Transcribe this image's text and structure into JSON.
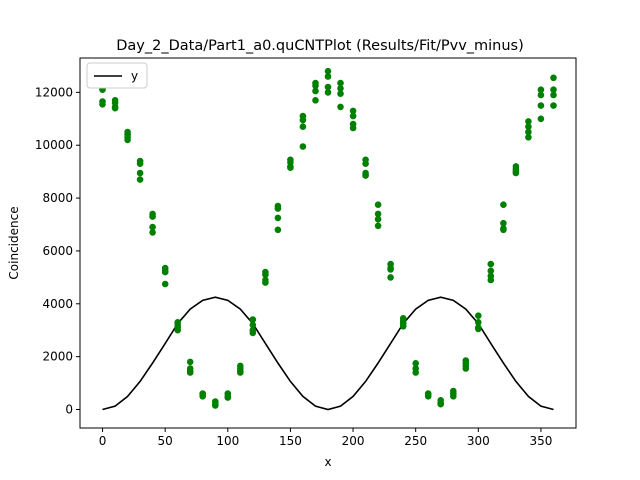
{
  "chart_data": {
    "type": "scatter",
    "title": "Day_2_Data/Part1_a0.quCNTPlot (Results/Fit/Pvv_minus)",
    "xlabel": "x",
    "ylabel": "Coincidence",
    "xlim": [
      -18,
      378
    ],
    "ylim": [
      -700,
      13300
    ],
    "xticks": [
      0,
      50,
      100,
      150,
      200,
      250,
      300,
      350
    ],
    "yticks": [
      0,
      2000,
      4000,
      6000,
      8000,
      10000,
      12000
    ],
    "grid": false,
    "legend": {
      "placement": "top-left",
      "entries": [
        {
          "label": "y",
          "color": "#000000"
        }
      ]
    },
    "series": [
      {
        "name": "y",
        "kind": "line",
        "color": "#000000",
        "x": [
          0,
          10,
          20,
          30,
          40,
          50,
          60,
          70,
          80,
          90,
          100,
          110,
          120,
          130,
          140,
          150,
          160,
          170,
          180,
          190,
          200,
          210,
          220,
          230,
          240,
          250,
          260,
          270,
          280,
          290,
          300,
          310,
          320,
          330,
          340,
          350,
          360
        ],
        "y": [
          0,
          128,
          497,
          1065,
          1760,
          2500,
          3250,
          3800,
          4130,
          4250,
          4130,
          3800,
          3250,
          2500,
          1760,
          1065,
          497,
          128,
          0,
          128,
          497,
          1065,
          1760,
          2500,
          3250,
          3800,
          4130,
          4250,
          4130,
          3800,
          3250,
          2500,
          1760,
          1065,
          497,
          128,
          0
        ]
      },
      {
        "kind": "scatter",
        "color": "#008000",
        "points": [
          [
            0,
            12150
          ],
          [
            0,
            12100
          ],
          [
            0,
            11650
          ],
          [
            0,
            11550
          ],
          [
            10,
            11700
          ],
          [
            10,
            11600
          ],
          [
            10,
            11450
          ],
          [
            10,
            11400
          ],
          [
            20,
            10500
          ],
          [
            20,
            10400
          ],
          [
            20,
            10300
          ],
          [
            20,
            10200
          ],
          [
            30,
            9400
          ],
          [
            30,
            9300
          ],
          [
            30,
            8950
          ],
          [
            30,
            8700
          ],
          [
            40,
            7400
          ],
          [
            40,
            7300
          ],
          [
            40,
            6900
          ],
          [
            40,
            6700
          ],
          [
            50,
            5350
          ],
          [
            50,
            5250
          ],
          [
            50,
            5200
          ],
          [
            50,
            4750
          ],
          [
            60,
            3300
          ],
          [
            60,
            3200
          ],
          [
            60,
            3100
          ],
          [
            60,
            3000
          ],
          [
            70,
            1800
          ],
          [
            70,
            1550
          ],
          [
            70,
            1450
          ],
          [
            70,
            1400
          ],
          [
            80,
            600
          ],
          [
            80,
            550
          ],
          [
            80,
            500
          ],
          [
            90,
            300
          ],
          [
            90,
            200
          ],
          [
            90,
            150
          ],
          [
            100,
            600
          ],
          [
            100,
            500
          ],
          [
            100,
            450
          ],
          [
            110,
            1650
          ],
          [
            110,
            1550
          ],
          [
            110,
            1450
          ],
          [
            110,
            1400
          ],
          [
            120,
            3400
          ],
          [
            120,
            3200
          ],
          [
            120,
            3000
          ],
          [
            120,
            2900
          ],
          [
            130,
            5200
          ],
          [
            130,
            5100
          ],
          [
            130,
            4900
          ],
          [
            130,
            4800
          ],
          [
            140,
            7700
          ],
          [
            140,
            7600
          ],
          [
            140,
            7250
          ],
          [
            140,
            6800
          ],
          [
            150,
            9450
          ],
          [
            150,
            9350
          ],
          [
            150,
            9200
          ],
          [
            150,
            9150
          ],
          [
            160,
            11100
          ],
          [
            160,
            10950
          ],
          [
            160,
            10700
          ],
          [
            160,
            9950
          ],
          [
            170,
            12350
          ],
          [
            170,
            12250
          ],
          [
            170,
            12050
          ],
          [
            170,
            11700
          ],
          [
            180,
            12800
          ],
          [
            180,
            12600
          ],
          [
            180,
            12200
          ],
          [
            180,
            12000
          ],
          [
            190,
            12350
          ],
          [
            190,
            12150
          ],
          [
            190,
            11950
          ],
          [
            190,
            11450
          ],
          [
            200,
            11300
          ],
          [
            200,
            11100
          ],
          [
            200,
            10800
          ],
          [
            200,
            10650
          ],
          [
            210,
            9450
          ],
          [
            210,
            9300
          ],
          [
            210,
            8950
          ],
          [
            210,
            8850
          ],
          [
            220,
            7750
          ],
          [
            220,
            7400
          ],
          [
            220,
            7200
          ],
          [
            220,
            6950
          ],
          [
            230,
            5500
          ],
          [
            230,
            5350
          ],
          [
            230,
            5300
          ],
          [
            230,
            5000
          ],
          [
            240,
            3450
          ],
          [
            240,
            3350
          ],
          [
            240,
            3250
          ],
          [
            240,
            3150
          ],
          [
            250,
            1750
          ],
          [
            250,
            1550
          ],
          [
            250,
            1400
          ],
          [
            260,
            600
          ],
          [
            260,
            550
          ],
          [
            260,
            500
          ],
          [
            270,
            350
          ],
          [
            270,
            250
          ],
          [
            270,
            200
          ],
          [
            280,
            700
          ],
          [
            280,
            600
          ],
          [
            280,
            500
          ],
          [
            290,
            1850
          ],
          [
            290,
            1750
          ],
          [
            290,
            1650
          ],
          [
            290,
            1550
          ],
          [
            300,
            3550
          ],
          [
            300,
            3300
          ],
          [
            300,
            3100
          ],
          [
            300,
            3050
          ],
          [
            310,
            5500
          ],
          [
            310,
            5250
          ],
          [
            310,
            5050
          ],
          [
            310,
            4900
          ],
          [
            320,
            7750
          ],
          [
            320,
            7050
          ],
          [
            320,
            6850
          ],
          [
            320,
            6800
          ],
          [
            330,
            9200
          ],
          [
            330,
            9100
          ],
          [
            330,
            9000
          ],
          [
            330,
            8950
          ],
          [
            340,
            10900
          ],
          [
            340,
            10700
          ],
          [
            340,
            10500
          ],
          [
            340,
            10300
          ],
          [
            350,
            12100
          ],
          [
            350,
            11900
          ],
          [
            350,
            11500
          ],
          [
            350,
            11000
          ],
          [
            360,
            12550
          ],
          [
            360,
            12100
          ],
          [
            360,
            11900
          ],
          [
            360,
            11500
          ]
        ]
      }
    ]
  }
}
